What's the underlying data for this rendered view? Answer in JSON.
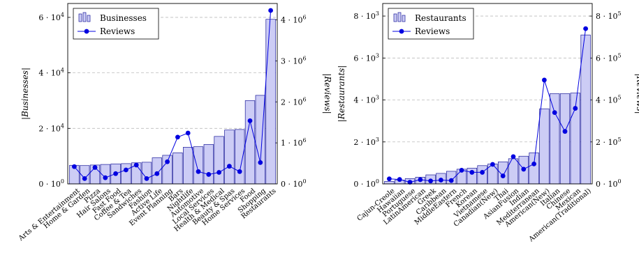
{
  "chart_data": [
    {
      "type": "bar",
      "categories": [
        "Arts & Entertainment",
        "Home & Garden",
        "Pizza",
        "Hair Salons",
        "Fast Food",
        "Coffee & Tea",
        "Sandwiches",
        "Fashion",
        "Active Life",
        "Event Planning",
        "Bars",
        "Nightlife",
        "Automotive",
        "Local Services",
        "Health & Medical",
        "Beauty & Spas",
        "Home Services",
        "Food",
        "Shopping",
        "Restaurants"
      ],
      "series": [
        {
          "name": "Businesses",
          "kind": "bar",
          "axis": "left",
          "values": [
            6700,
            6600,
            6800,
            7000,
            7200,
            7300,
            7600,
            7800,
            9400,
            10300,
            11200,
            13200,
            13400,
            14200,
            17100,
            19400,
            19600,
            30000,
            31900,
            59300
          ]
        },
        {
          "name": "Reviews",
          "kind": "line",
          "axis": "right",
          "values": [
            420000,
            130000,
            400000,
            150000,
            250000,
            340000,
            460000,
            130000,
            250000,
            540000,
            1140000,
            1240000,
            300000,
            230000,
            280000,
            430000,
            300000,
            1540000,
            520000,
            4230000
          ]
        }
      ],
      "ylabel": "|Businesses|",
      "y2label": "|Reviews|",
      "ylim": [
        0,
        65000
      ],
      "y2lim": [
        0,
        4400000
      ],
      "yticks": [
        "0 · 10⁰",
        "2 · 10⁴",
        "4 · 10⁴",
        "6 · 10⁴"
      ],
      "y2ticks": [
        "0 · 10⁰",
        "1 · 10⁶",
        "2 · 10⁶",
        "3 · 10⁶",
        "4 · 10⁶"
      ],
      "grid": true,
      "legend": "top-left",
      "colors": {
        "bar_fill": "#ccccf5",
        "bar_stroke": "#1a1a9a",
        "line": "#0000e0"
      }
    },
    {
      "type": "bar",
      "categories": [
        "Cajun-Creole",
        "Hawaiian",
        "Portuguese",
        "LatinAmerican",
        "Greek",
        "Caribbean",
        "MiddleEastern",
        "French",
        "Korean",
        "Vietnamese",
        "Canadian(New)",
        "Thai",
        "AsianFusion",
        "Indian",
        "Mediterranean",
        "American(New)",
        "Italian",
        "Chinese",
        "Mexican",
        "American(Traditional)"
      ],
      "series": [
        {
          "name": "Restaurants",
          "kind": "bar",
          "axis": "left",
          "values": [
            120,
            180,
            250,
            320,
            430,
            500,
            600,
            700,
            750,
            870,
            950,
            1050,
            1200,
            1320,
            1480,
            3580,
            4300,
            4300,
            4330,
            7100
          ]
        },
        {
          "name": "Reviews",
          "kind": "line",
          "axis": "right",
          "values": [
            24000,
            21000,
            8000,
            20000,
            14000,
            18000,
            16000,
            65000,
            55000,
            55000,
            93000,
            38000,
            130000,
            70000,
            95000,
            495000,
            340000,
            250000,
            360000,
            740000
          ]
        }
      ],
      "ylabel": "|Restaurants|",
      "y2label": "|Reviews|",
      "ylim": [
        0,
        8600
      ],
      "y2lim": [
        0,
        860000
      ],
      "yticks": [
        "0 · 10⁰",
        "2 · 10³",
        "4 · 10³",
        "6 · 10³",
        "8 · 10³"
      ],
      "y2ticks": [
        "0 · 10⁰",
        "2 · 10⁵",
        "4 · 10⁵",
        "6 · 10⁵",
        "8 · 10⁵"
      ],
      "grid": true,
      "legend": "top-left",
      "colors": {
        "bar_fill": "#ccccf5",
        "bar_stroke": "#1a1a9a",
        "line": "#0000e0"
      }
    }
  ]
}
